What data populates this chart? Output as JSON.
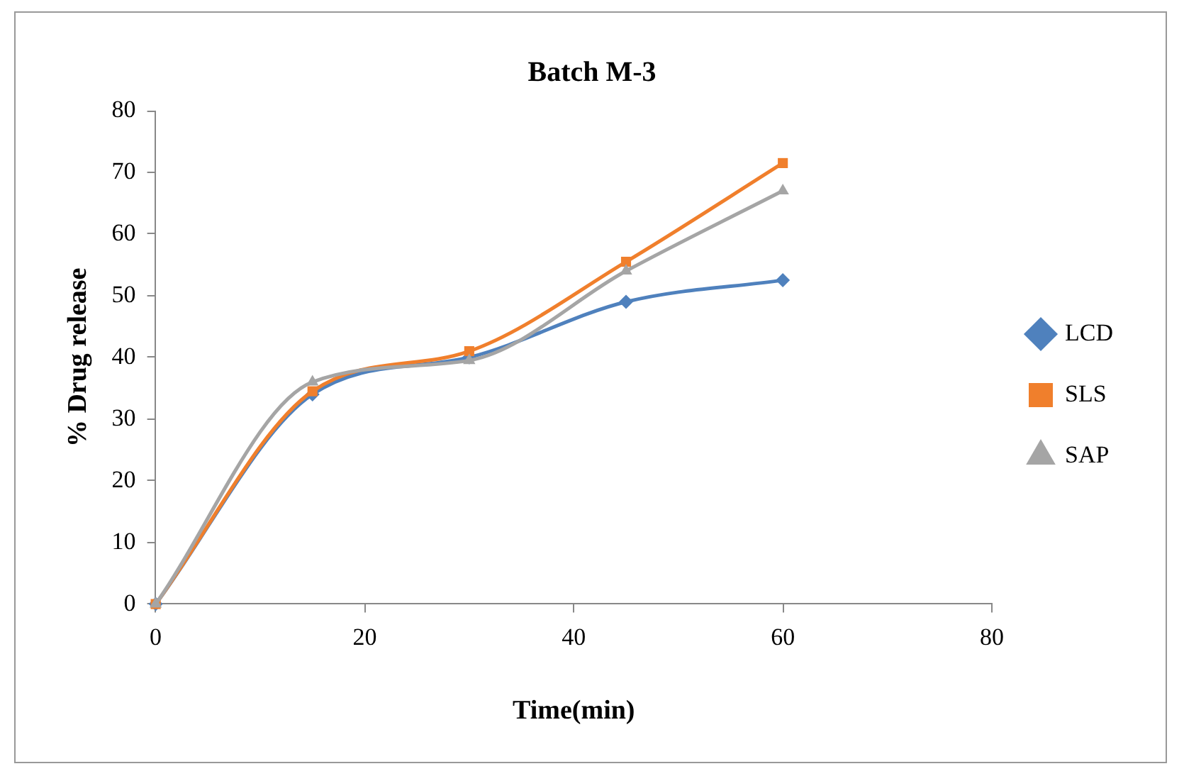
{
  "chart_data": {
    "type": "line",
    "title": "Batch M-3",
    "xlabel": "Time(min)",
    "ylabel": "% Drug release",
    "x": [
      0,
      15,
      30,
      45,
      60
    ],
    "series": [
      {
        "name": "LCD",
        "color": "#4f81bd",
        "marker": "diamond",
        "values": [
          0,
          34,
          40,
          49,
          52.5
        ]
      },
      {
        "name": "SLS",
        "color": "#f07f2c",
        "marker": "square",
        "values": [
          0,
          34.5,
          41,
          55.5,
          71.5
        ]
      },
      {
        "name": "SAP",
        "color": "#a5a5a5",
        "marker": "triangle",
        "values": [
          0,
          36,
          39.5,
          54,
          67
        ]
      }
    ],
    "xlim": [
      0,
      80
    ],
    "xticks": [
      0,
      20,
      40,
      60,
      80
    ],
    "ylim": [
      0,
      80
    ],
    "yticks": [
      0,
      10,
      20,
      30,
      40,
      50,
      60,
      70,
      80
    ],
    "grid": false,
    "legend": "right"
  }
}
